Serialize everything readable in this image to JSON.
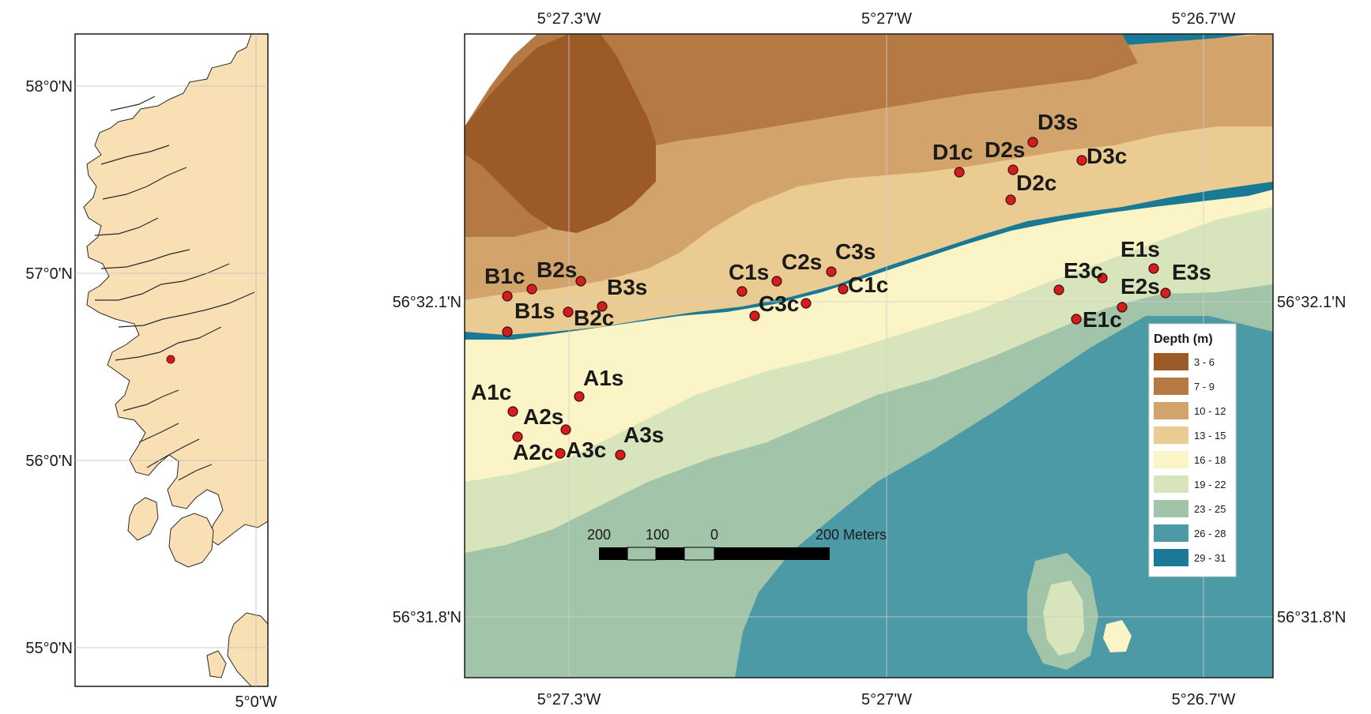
{
  "inset_map": {
    "lat_labels": [
      "58°0'N",
      "57°0'N",
      "56°0'N",
      "55°0'N"
    ],
    "lon_labels": [
      "5°0'W"
    ]
  },
  "main_map": {
    "lon_labels_top": [
      "5°27.3'W",
      "5°27'W",
      "5°26.7'W"
    ],
    "lon_labels_bottom": [
      "5°27.3'W",
      "5°27'W",
      "5°26.7'W"
    ],
    "lat_labels_left": [
      "56°32.1'N",
      "56°31.8'N"
    ],
    "lat_labels_right": [
      "56°32.1'N",
      "56°31.8'N"
    ],
    "sites": [
      "A1c",
      "A1s",
      "A2s",
      "A2c",
      "A3c",
      "A3s",
      "B1c",
      "B2s",
      "B3s",
      "B1s",
      "B2c",
      "C1s",
      "C2s",
      "C3s",
      "C1c",
      "C3c",
      "D1c",
      "D2s",
      "D3s",
      "D3c",
      "D2c",
      "E1s",
      "E3s",
      "E3c",
      "E2s",
      "E1c"
    ]
  },
  "legend": {
    "title": "Depth (m)",
    "classes": [
      {
        "label": "3 - 6",
        "color": "#9c5a26"
      },
      {
        "label": "7 - 9",
        "color": "#b57a44"
      },
      {
        "label": "10 - 12",
        "color": "#d2a36b"
      },
      {
        "label": "13 - 15",
        "color": "#eacb92"
      },
      {
        "label": "16 - 18",
        "color": "#fbf4c6"
      },
      {
        "label": "19 - 22",
        "color": "#d8e4bc"
      },
      {
        "label": "23 - 25",
        "color": "#a2c4a8"
      },
      {
        "label": "26 - 28",
        "color": "#4c9aa6"
      },
      {
        "label": "29 - 31",
        "color": "#1a7a96"
      }
    ]
  },
  "scale_bar": {
    "labels": [
      "200",
      "100",
      "0",
      "200 Meters"
    ]
  }
}
